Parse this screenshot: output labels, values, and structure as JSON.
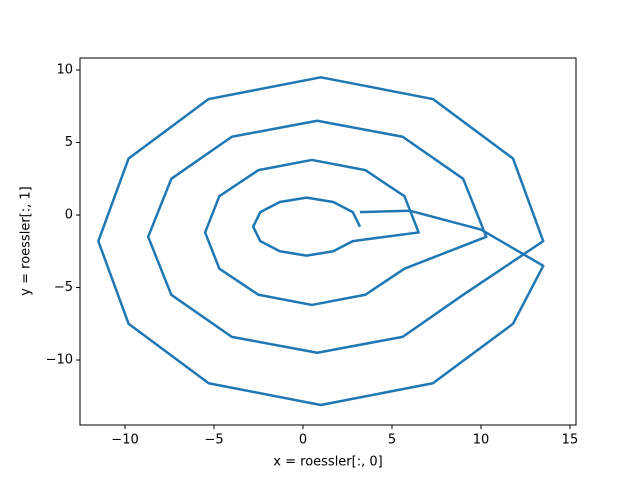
{
  "chart_data": {
    "type": "line",
    "xlabel": "x = roessler[:, 0]",
    "ylabel": "y = roessler[:, 1]",
    "xlim": [
      -12.53,
      15.34
    ],
    "ylim": [
      -14.48,
      10.83
    ],
    "xticks": [
      {
        "value": -10,
        "label": "−10"
      },
      {
        "value": -5,
        "label": "−5"
      },
      0,
      5,
      10,
      15
    ],
    "yticks": [
      {
        "value": -10,
        "label": "−10"
      },
      {
        "value": -5,
        "label": "−5"
      },
      0,
      5,
      10
    ],
    "series": [
      {
        "color": "#1f77b4",
        "x": [
          3.2,
          2.8,
          1.7,
          0.2,
          -1.3,
          -2.4,
          -2.8,
          -2.4,
          -1.3,
          0.2,
          1.7,
          2.8,
          6.5,
          5.7,
          3.5,
          0.5,
          -2.5,
          -4.7,
          -5.5,
          -4.7,
          -2.5,
          0.5,
          3.5,
          5.7,
          10.3,
          9.0,
          5.6,
          0.8,
          -4.0,
          -7.4,
          -8.7,
          -7.4,
          -4.0,
          0.8,
          5.6,
          9.0,
          13.5,
          11.8,
          7.3,
          1,
          -5.3,
          -9.8,
          -11.5,
          -9.8,
          -5.3,
          1,
          7.3,
          11.8,
          13.5,
          10,
          6,
          3.2
        ],
        "y": [
          -0.8,
          0.2,
          0.9,
          1.2,
          0.9,
          0.2,
          -0.8,
          -1.8,
          -2.5,
          -2.8,
          -2.5,
          -1.8,
          -1.2,
          1.3,
          3.1,
          3.8,
          3.1,
          1.3,
          -1.2,
          -3.7,
          -5.5,
          -6.2,
          -5.5,
          -3.7,
          -1.5,
          2.5,
          5.4,
          6.5,
          5.4,
          2.5,
          -1.5,
          -5.5,
          -8.4,
          -9.5,
          -8.4,
          -5.5,
          -1.8,
          3.9,
          8.0,
          9.5,
          8.0,
          3.9,
          -1.8,
          -7.5,
          -11.6,
          -13.1,
          -11.6,
          -7.5,
          -3.5,
          -1,
          0.3,
          0.2
        ]
      }
    ]
  }
}
